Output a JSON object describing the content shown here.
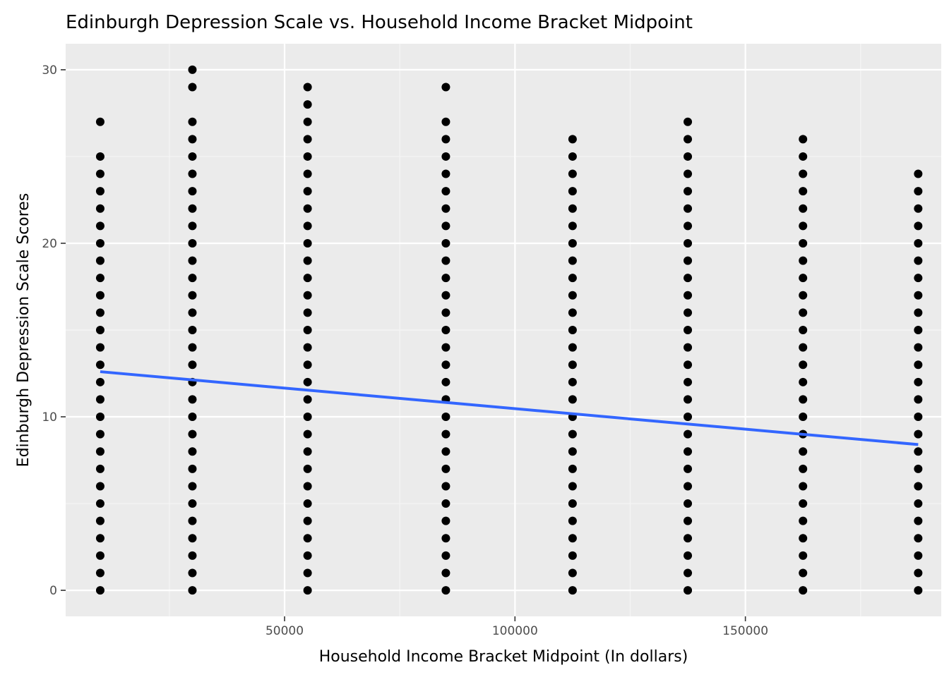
{
  "chart_data": {
    "type": "scatter",
    "title": "Edinburgh Depression Scale vs. Household Income Bracket Midpoint",
    "xlabel": "Household Income Bracket Midpoint (In dollars)",
    "ylabel": "Edinburgh Depression Scale Scores",
    "xlim": [
      2500,
      192500
    ],
    "ylim": [
      -1.5,
      31.5
    ],
    "x_ticks": [
      50000,
      100000,
      150000
    ],
    "x_tick_labels": [
      "50000",
      "100000",
      "150000"
    ],
    "y_ticks": [
      0,
      10,
      20,
      30
    ],
    "y_tick_labels": [
      "0",
      "10",
      "20",
      "30"
    ],
    "grid": true,
    "legend": "none",
    "series": [
      {
        "marker_color": "#000000",
        "points": [
          {
            "x": 10000,
            "values": [
              0,
              1,
              2,
              3,
              4,
              5,
              6,
              7,
              8,
              9,
              10,
              11,
              12,
              13,
              14,
              15,
              16,
              17,
              18,
              19,
              20,
              21,
              22,
              23,
              24,
              25,
              27
            ]
          },
          {
            "x": 30000,
            "values": [
              0,
              1,
              2,
              3,
              4,
              5,
              6,
              7,
              8,
              9,
              10,
              11,
              12,
              13,
              14,
              15,
              16,
              17,
              18,
              19,
              20,
              21,
              22,
              23,
              24,
              25,
              26,
              27,
              29,
              30
            ]
          },
          {
            "x": 55000,
            "values": [
              0,
              1,
              2,
              3,
              4,
              5,
              6,
              7,
              8,
              9,
              10,
              11,
              12,
              13,
              14,
              15,
              16,
              17,
              18,
              19,
              20,
              21,
              22,
              23,
              24,
              25,
              26,
              27,
              28,
              29
            ]
          },
          {
            "x": 85000,
            "values": [
              0,
              1,
              2,
              3,
              4,
              5,
              6,
              7,
              8,
              9,
              10,
              11,
              12,
              13,
              14,
              15,
              16,
              17,
              18,
              19,
              20,
              21,
              22,
              23,
              24,
              25,
              26,
              27,
              29
            ]
          },
          {
            "x": 112500,
            "values": [
              0,
              1,
              2,
              3,
              4,
              5,
              6,
              7,
              8,
              9,
              10,
              11,
              12,
              13,
              14,
              15,
              16,
              17,
              18,
              19,
              20,
              21,
              22,
              23,
              24,
              25,
              26
            ]
          },
          {
            "x": 137500,
            "values": [
              0,
              1,
              2,
              3,
              4,
              5,
              6,
              7,
              8,
              9,
              10,
              11,
              12,
              13,
              14,
              15,
              16,
              17,
              18,
              19,
              20,
              21,
              22,
              23,
              24,
              25,
              26,
              27
            ]
          },
          {
            "x": 162500,
            "values": [
              0,
              1,
              2,
              3,
              4,
              5,
              6,
              7,
              8,
              9,
              10,
              11,
              12,
              13,
              14,
              15,
              16,
              17,
              18,
              19,
              20,
              21,
              22,
              23,
              24,
              25,
              26
            ]
          },
          {
            "x": 187500,
            "values": [
              0,
              1,
              2,
              3,
              4,
              5,
              6,
              7,
              8,
              9,
              10,
              11,
              12,
              13,
              14,
              15,
              16,
              17,
              18,
              19,
              20,
              21,
              22,
              23,
              24
            ]
          }
        ]
      }
    ],
    "trend_line": {
      "color": "#3366FF",
      "x": [
        10000,
        187500
      ],
      "y": [
        12.6,
        8.4
      ]
    }
  },
  "colors": {
    "panel_background": "#EBEBEB",
    "grid_major": "#FFFFFF",
    "grid_minor": "#F5F5F5",
    "points": "#000000",
    "trend": "#3366FF"
  }
}
